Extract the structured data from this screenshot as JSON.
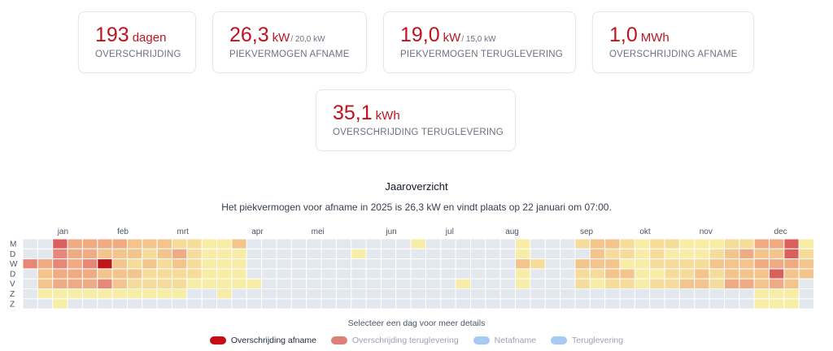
{
  "colors": {
    "overschrijding_afname": "#c40d14",
    "overschrijding_teruglevering": "#df7f7a",
    "netafname": "#a7c9f2",
    "teruglevering": "#a7c9f2",
    "empty": "#e3e7ee",
    "scale": [
      "#e3e7ee",
      "#f8eda6",
      "#f6dc9b",
      "#f3c48c",
      "#eeab84",
      "#e6877a",
      "#d9605c",
      "#c1151c"
    ]
  },
  "cards": [
    {
      "value": "193",
      "unit": "dagen",
      "sub": "",
      "label": "OVERSCHRIJDING"
    },
    {
      "value": "26,3",
      "unit": "kW",
      "sub": "/ 20,0 kW",
      "label": "PIEKVERMOGEN AFNAME"
    },
    {
      "value": "19,0",
      "unit": "kW",
      "sub": "/ 15,0 kW",
      "label": "PIEKVERMOGEN TERUGLEVERING"
    },
    {
      "value": "1,0",
      "unit": "MWh",
      "sub": "",
      "label": "OVERSCHRIJDING AFNAME"
    },
    {
      "value": "35,1",
      "unit": "kWh",
      "sub": "",
      "label": "OVERSCHRIJDING TERUGLEVERING"
    }
  ],
  "overview": {
    "title": "Jaaroverzicht",
    "subtitle": "Het piekvermogen voor afname in 2025 is 26,3 kW en vindt plaats op 22 januari om 07:00.",
    "hint": "Selecteer een dag voor meer details"
  },
  "chart_data": {
    "type": "heatmap",
    "months": [
      "jan",
      "feb",
      "mrt",
      "apr",
      "mei",
      "jun",
      "jul",
      "aug",
      "sep",
      "okt",
      "nov",
      "dec"
    ],
    "month_start_weeks": [
      2,
      6,
      10,
      15,
      19,
      24,
      28,
      32,
      37,
      41,
      45,
      50
    ],
    "days": [
      "M",
      "D",
      "W",
      "D",
      "V",
      "Z",
      "Z"
    ],
    "weeks": 53,
    "level_rows": [
      "00064444333221130000000000000000000000000000001000000000000000000000000000000000000000000000000000000000000100000000000000000000000000000000000000000000000000000000000000000000000000000000000000000000000000000000000000000000000000000000000000000000000000000000000000000000000000000000000000000000000000000000000000000000000000000000000000000000000000000000000000000000",
      "00000000000000000000000000000000000000000000000000000000000000000000000000000000000000000000000000000000000000000000000000000000000000000000000000000000000000000000000000000000000000000000000000000000000000000000000000000000000000000000000000000000000000000000000000000000000000000000000000000000000000000000000000000000000000000000000000000000000000000000000000000000"
    ],
    "levels": [
      [
        0,
        0,
        6,
        4,
        4,
        4,
        4,
        3,
        3,
        3,
        2,
        2,
        1,
        1,
        3,
        0,
        0,
        0,
        0,
        0,
        0,
        0,
        0,
        0,
        0,
        0,
        1,
        0,
        0,
        0,
        0,
        0,
        0,
        1,
        0,
        0,
        0,
        2,
        3,
        3,
        2,
        1,
        2,
        2,
        1,
        1,
        1,
        2,
        2,
        4,
        4,
        6,
        1
      ],
      [
        0,
        0,
        5,
        4,
        4,
        3,
        3,
        3,
        2,
        3,
        4,
        2,
        1,
        1,
        1,
        0,
        0,
        0,
        0,
        0,
        0,
        0,
        1,
        0,
        0,
        0,
        0,
        0,
        0,
        0,
        0,
        0,
        0,
        1,
        0,
        0,
        0,
        0,
        3,
        2,
        2,
        1,
        2,
        1,
        1,
        1,
        2,
        3,
        4,
        3,
        3,
        6,
        2
      ],
      [
        5,
        4,
        5,
        4,
        5,
        7,
        3,
        2,
        3,
        2,
        3,
        2,
        1,
        1,
        1,
        0,
        0,
        0,
        0,
        0,
        0,
        0,
        0,
        0,
        0,
        0,
        0,
        0,
        0,
        0,
        0,
        0,
        0,
        3,
        2,
        0,
        0,
        3,
        3,
        3,
        1,
        1,
        2,
        2,
        2,
        2,
        3,
        3,
        3,
        4,
        4,
        4,
        3
      ],
      [
        0,
        3,
        4,
        4,
        4,
        3,
        3,
        3,
        2,
        2,
        2,
        2,
        1,
        1,
        1,
        0,
        0,
        0,
        0,
        0,
        0,
        0,
        0,
        0,
        0,
        0,
        0,
        0,
        0,
        0,
        0,
        0,
        0,
        1,
        0,
        0,
        0,
        2,
        2,
        3,
        3,
        1,
        1,
        2,
        2,
        3,
        2,
        3,
        3,
        3,
        6,
        3,
        3
      ],
      [
        0,
        3,
        4,
        4,
        4,
        5,
        3,
        2,
        2,
        2,
        2,
        1,
        1,
        1,
        1,
        1,
        0,
        0,
        0,
        0,
        0,
        0,
        0,
        0,
        0,
        0,
        0,
        0,
        0,
        1,
        0,
        0,
        0,
        1,
        0,
        0,
        0,
        2,
        1,
        2,
        2,
        1,
        2,
        2,
        3,
        3,
        2,
        4,
        4,
        3,
        4,
        3,
        0
      ],
      [
        0,
        1,
        1,
        1,
        1,
        1,
        1,
        1,
        1,
        1,
        1,
        0,
        0,
        1,
        0,
        0,
        0,
        0,
        0,
        0,
        0,
        0,
        0,
        0,
        0,
        0,
        0,
        0,
        0,
        0,
        0,
        0,
        0,
        0,
        0,
        0,
        0,
        0,
        0,
        0,
        0,
        0,
        0,
        0,
        0,
        0,
        0,
        0,
        0,
        1,
        1,
        1,
        0
      ],
      [
        0,
        0,
        1,
        0,
        0,
        0,
        0,
        0,
        0,
        0,
        0,
        0,
        0,
        0,
        0,
        0,
        0,
        0,
        0,
        0,
        0,
        0,
        0,
        0,
        0,
        0,
        0,
        0,
        0,
        0,
        0,
        0,
        0,
        0,
        0,
        0,
        0,
        0,
        0,
        0,
        0,
        0,
        0,
        0,
        0,
        0,
        0,
        0,
        0,
        1,
        1,
        1,
        0
      ]
    ]
  },
  "legend": [
    {
      "label": "Overschrijding afname",
      "color": "#c40d14",
      "active": true
    },
    {
      "label": "Overschrijding teruglevering",
      "color": "#df7f7a",
      "active": false
    },
    {
      "label": "Netafname",
      "color": "#a7c9f2",
      "active": false
    },
    {
      "label": "Teruglevering",
      "color": "#a7c9f2",
      "active": false
    }
  ]
}
